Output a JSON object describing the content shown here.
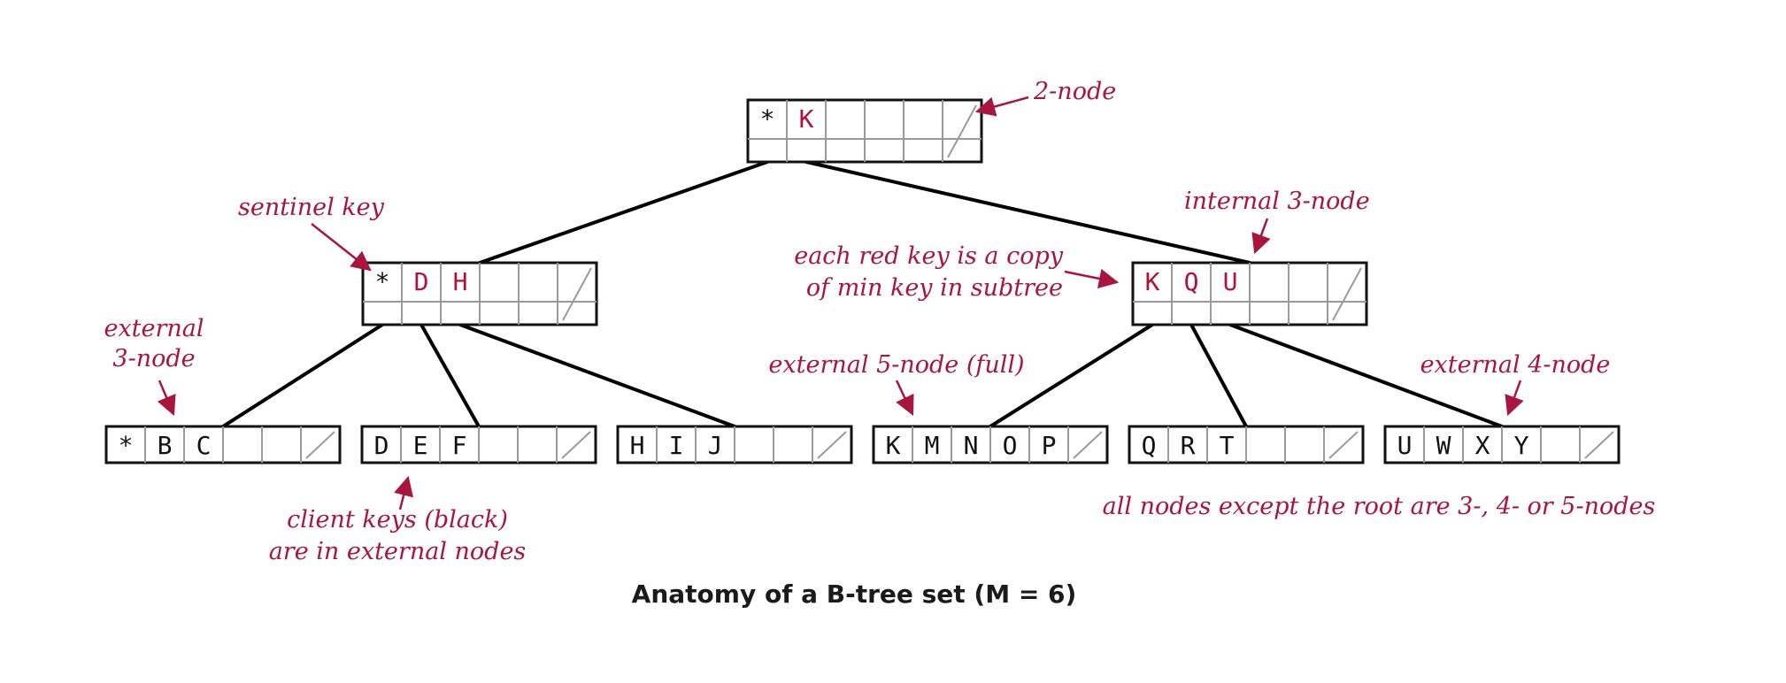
{
  "colors": {
    "node_border": "#111111",
    "cell_line": "#9a9a9a",
    "edge": "#000000",
    "red_key": "#b0123a",
    "black_key": "#111111",
    "annotation": "#a8163f"
  },
  "nodes": [
    {
      "id": "root",
      "keys": [
        {
          "t": "*",
          "red": false
        },
        {
          "t": "K",
          "red": true
        }
      ]
    },
    {
      "id": "internal-left",
      "keys": [
        {
          "t": "*",
          "red": false
        },
        {
          "t": "D",
          "red": true
        },
        {
          "t": "H",
          "red": true
        }
      ]
    },
    {
      "id": "internal-right",
      "keys": [
        {
          "t": "K",
          "red": true
        },
        {
          "t": "Q",
          "red": true
        },
        {
          "t": "U",
          "red": true
        }
      ]
    },
    {
      "id": "leaf-1",
      "keys": [
        {
          "t": "*",
          "red": false
        },
        {
          "t": "B",
          "red": false
        },
        {
          "t": "C",
          "red": false
        }
      ]
    },
    {
      "id": "leaf-2",
      "keys": [
        {
          "t": "D",
          "red": false
        },
        {
          "t": "E",
          "red": false
        },
        {
          "t": "F",
          "red": false
        }
      ]
    },
    {
      "id": "leaf-3",
      "keys": [
        {
          "t": "H",
          "red": false
        },
        {
          "t": "I",
          "red": false
        },
        {
          "t": "J",
          "red": false
        }
      ]
    },
    {
      "id": "leaf-4",
      "keys": [
        {
          "t": "K",
          "red": false
        },
        {
          "t": "M",
          "red": false
        },
        {
          "t": "N",
          "red": false
        },
        {
          "t": "O",
          "red": false
        },
        {
          "t": "P",
          "red": false
        }
      ]
    },
    {
      "id": "leaf-5",
      "keys": [
        {
          "t": "Q",
          "red": false
        },
        {
          "t": "R",
          "red": false
        },
        {
          "t": "T",
          "red": false
        }
      ]
    },
    {
      "id": "leaf-6",
      "keys": [
        {
          "t": "U",
          "red": false
        },
        {
          "t": "W",
          "red": false
        },
        {
          "t": "X",
          "red": false
        },
        {
          "t": "Y",
          "red": false
        }
      ]
    }
  ],
  "annotations": {
    "two_node": "2-node",
    "sentinel_key": "sentinel key",
    "internal_3_node": "internal 3-node",
    "red_key_line1": "each red key is a copy",
    "red_key_line2": "of min key in subtree",
    "external_3_node_line1": "external",
    "external_3_node_line2": "3-node",
    "external_5_node": "external 5-node (full)",
    "external_4_node": "external 4-node",
    "client_keys_line1": "client keys (black)",
    "client_keys_line2": "are in external nodes",
    "all_nodes": "all nodes except the root are 3-, 4- or 5-nodes"
  },
  "caption": "Anatomy of a B-tree set (M = 6)"
}
